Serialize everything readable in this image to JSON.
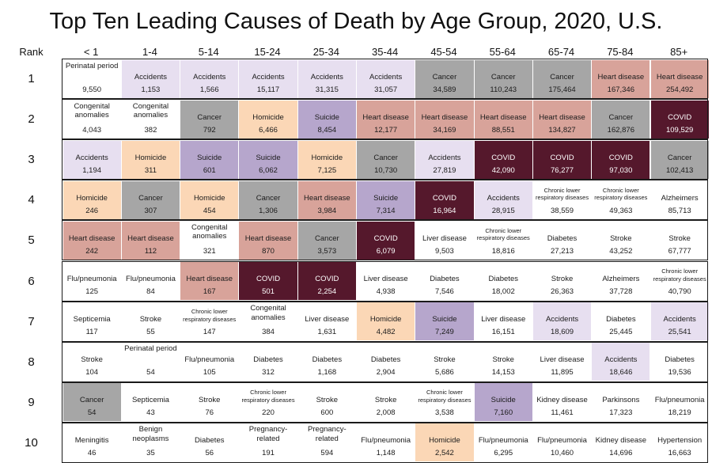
{
  "title": "Top Ten Leading Causes of Death by Age Group, 2020, U.S.",
  "colors": {
    "Accidents": "#e7dff0",
    "Cancer": "#a6a6a6",
    "Heart disease": "#d8a39a",
    "Homicide": "#fbd7b6",
    "Suicide": "#b6a6cc",
    "COVID": "#55182c",
    "default": "#ffffff"
  },
  "chart_data": {
    "type": "table",
    "title": "Top Ten Leading Causes of Death by Age Group, 2020, U.S.",
    "rank_header": "Rank",
    "columns": [
      "< 1",
      "1-4",
      "5-14",
      "15-24",
      "25-34",
      "35-44",
      "45-54",
      "55-64",
      "65-74",
      "75-84",
      "85+"
    ],
    "rows": [
      {
        "rank": "1",
        "cells": [
          {
            "cause": "Perinatal period",
            "deaths": "9,550"
          },
          {
            "cause": "Accidents",
            "deaths": "1,153"
          },
          {
            "cause": "Accidents",
            "deaths": "1,566"
          },
          {
            "cause": "Accidents",
            "deaths": "15,117"
          },
          {
            "cause": "Accidents",
            "deaths": "31,315"
          },
          {
            "cause": "Accidents",
            "deaths": "31,057"
          },
          {
            "cause": "Cancer",
            "deaths": "34,589"
          },
          {
            "cause": "Cancer",
            "deaths": "110,243"
          },
          {
            "cause": "Cancer",
            "deaths": "175,464"
          },
          {
            "cause": "Heart disease",
            "deaths": "167,346"
          },
          {
            "cause": "Heart disease",
            "deaths": "254,492"
          }
        ]
      },
      {
        "rank": "2",
        "cells": [
          {
            "cause": "Congenital anomalies",
            "deaths": "4,043"
          },
          {
            "cause": "Congenital anomalies",
            "deaths": "382"
          },
          {
            "cause": "Cancer",
            "deaths": "792"
          },
          {
            "cause": "Homicide",
            "deaths": "6,466"
          },
          {
            "cause": "Suicide",
            "deaths": "8,454"
          },
          {
            "cause": "Heart disease",
            "deaths": "12,177"
          },
          {
            "cause": "Heart disease",
            "deaths": "34,169"
          },
          {
            "cause": "Heart disease",
            "deaths": "88,551"
          },
          {
            "cause": "Heart disease",
            "deaths": "134,827"
          },
          {
            "cause": "Cancer",
            "deaths": "162,876"
          },
          {
            "cause": "COVID",
            "deaths": "109,529"
          }
        ]
      },
      {
        "rank": "3",
        "cells": [
          {
            "cause": "Accidents",
            "deaths": "1,194"
          },
          {
            "cause": "Homicide",
            "deaths": "311"
          },
          {
            "cause": "Suicide",
            "deaths": "601"
          },
          {
            "cause": "Suicide",
            "deaths": "6,062"
          },
          {
            "cause": "Homicide",
            "deaths": "7,125"
          },
          {
            "cause": "Cancer",
            "deaths": "10,730"
          },
          {
            "cause": "Accidents",
            "deaths": "27,819"
          },
          {
            "cause": "COVID",
            "deaths": "42,090"
          },
          {
            "cause": "COVID",
            "deaths": "76,277"
          },
          {
            "cause": "COVID",
            "deaths": "97,030"
          },
          {
            "cause": "Cancer",
            "deaths": "102,413"
          }
        ]
      },
      {
        "rank": "4",
        "cells": [
          {
            "cause": "Homicide",
            "deaths": "246"
          },
          {
            "cause": "Cancer",
            "deaths": "307"
          },
          {
            "cause": "Homicide",
            "deaths": "454"
          },
          {
            "cause": "Cancer",
            "deaths": "1,306"
          },
          {
            "cause": "Heart disease",
            "deaths": "3,984"
          },
          {
            "cause": "Suicide",
            "deaths": "7,314"
          },
          {
            "cause": "COVID",
            "deaths": "16,964"
          },
          {
            "cause": "Accidents",
            "deaths": "28,915"
          },
          {
            "cause": "Chronic lower respiratory diseases",
            "deaths": "38,559"
          },
          {
            "cause": "Chronic lower respiratory diseases",
            "deaths": "49,363"
          },
          {
            "cause": "Alzheimers",
            "deaths": "85,713"
          }
        ]
      },
      {
        "rank": "5",
        "cells": [
          {
            "cause": "Heart disease",
            "deaths": "242"
          },
          {
            "cause": "Heart disease",
            "deaths": "112"
          },
          {
            "cause": "Congenital anomalies",
            "deaths": "321"
          },
          {
            "cause": "Heart disease",
            "deaths": "870"
          },
          {
            "cause": "Cancer",
            "deaths": "3,573"
          },
          {
            "cause": "COVID",
            "deaths": "6,079"
          },
          {
            "cause": "Liver disease",
            "deaths": "9,503"
          },
          {
            "cause": "Chronic lower respiratory diseases",
            "deaths": "18,816"
          },
          {
            "cause": "Diabetes",
            "deaths": "27,213"
          },
          {
            "cause": "Stroke",
            "deaths": "43,252"
          },
          {
            "cause": "Stroke",
            "deaths": "67,777"
          }
        ]
      },
      {
        "rank": "6",
        "cells": [
          {
            "cause": "Flu/pneumonia",
            "deaths": "125"
          },
          {
            "cause": "Flu/pneumonia",
            "deaths": "84"
          },
          {
            "cause": "Heart disease",
            "deaths": "167"
          },
          {
            "cause": "COVID",
            "deaths": "501"
          },
          {
            "cause": "COVID",
            "deaths": "2,254"
          },
          {
            "cause": "Liver disease",
            "deaths": "4,938"
          },
          {
            "cause": "Diabetes",
            "deaths": "7,546"
          },
          {
            "cause": "Diabetes",
            "deaths": "18,002"
          },
          {
            "cause": "Stroke",
            "deaths": "26,363"
          },
          {
            "cause": "Alzheimers",
            "deaths": "37,728"
          },
          {
            "cause": "Chronic lower respiratory diseases",
            "deaths": "40,790"
          }
        ]
      },
      {
        "rank": "7",
        "cells": [
          {
            "cause": "Septicemia",
            "deaths": "117"
          },
          {
            "cause": "Stroke",
            "deaths": "55"
          },
          {
            "cause": "Chronic lower respiratory diseases",
            "deaths": "147"
          },
          {
            "cause": "Congenital anomalies",
            "deaths": "384"
          },
          {
            "cause": "Liver disease",
            "deaths": "1,631"
          },
          {
            "cause": "Homicide",
            "deaths": "4,482"
          },
          {
            "cause": "Suicide",
            "deaths": "7,249"
          },
          {
            "cause": "Liver disease",
            "deaths": "16,151"
          },
          {
            "cause": "Accidents",
            "deaths": "18,609"
          },
          {
            "cause": "Diabetes",
            "deaths": "25,445"
          },
          {
            "cause": "Accidents",
            "deaths": "25,541"
          }
        ]
      },
      {
        "rank": "8",
        "cells": [
          {
            "cause": "Stroke",
            "deaths": "104"
          },
          {
            "cause": "Perinatal period",
            "deaths": "54"
          },
          {
            "cause": "Flu/pneumonia",
            "deaths": "105"
          },
          {
            "cause": "Diabetes",
            "deaths": "312"
          },
          {
            "cause": "Diabetes",
            "deaths": "1,168"
          },
          {
            "cause": "Diabetes",
            "deaths": "2,904"
          },
          {
            "cause": "Stroke",
            "deaths": "5,686"
          },
          {
            "cause": "Stroke",
            "deaths": "14,153"
          },
          {
            "cause": "Liver disease",
            "deaths": "11,895"
          },
          {
            "cause": "Accidents",
            "deaths": "18,646"
          },
          {
            "cause": "Diabetes",
            "deaths": "19,536"
          }
        ]
      },
      {
        "rank": "9",
        "cells": [
          {
            "cause": "Cancer",
            "deaths": "54"
          },
          {
            "cause": "Septicemia",
            "deaths": "43"
          },
          {
            "cause": "Stroke",
            "deaths": "76"
          },
          {
            "cause": "Chronic lower respiratory diseases",
            "deaths": "220"
          },
          {
            "cause": "Stroke",
            "deaths": "600"
          },
          {
            "cause": "Stroke",
            "deaths": "2,008"
          },
          {
            "cause": "Chronic lower respiratory diseases",
            "deaths": "3,538"
          },
          {
            "cause": "Suicide",
            "deaths": "7,160"
          },
          {
            "cause": "Kidney disease",
            "deaths": "11,461"
          },
          {
            "cause": "Parkinsons",
            "deaths": "17,323"
          },
          {
            "cause": "Flu/pneumonia",
            "deaths": "18,219"
          }
        ]
      },
      {
        "rank": "10",
        "cells": [
          {
            "cause": "Meningitis",
            "deaths": "46"
          },
          {
            "cause": "Benign neoplasms",
            "deaths": "35"
          },
          {
            "cause": "Diabetes",
            "deaths": "56"
          },
          {
            "cause": "Pregnancy-related",
            "deaths": "191"
          },
          {
            "cause": "Pregnancy-related",
            "deaths": "594"
          },
          {
            "cause": "Flu/pneumonia",
            "deaths": "1,148"
          },
          {
            "cause": "Homicide",
            "deaths": "2,542"
          },
          {
            "cause": "Flu/pneumonia",
            "deaths": "6,295"
          },
          {
            "cause": "Flu/pneumonia",
            "deaths": "10,460"
          },
          {
            "cause": "Kidney disease",
            "deaths": "14,696"
          },
          {
            "cause": "Hypertension",
            "deaths": "16,663"
          }
        ]
      }
    ]
  }
}
